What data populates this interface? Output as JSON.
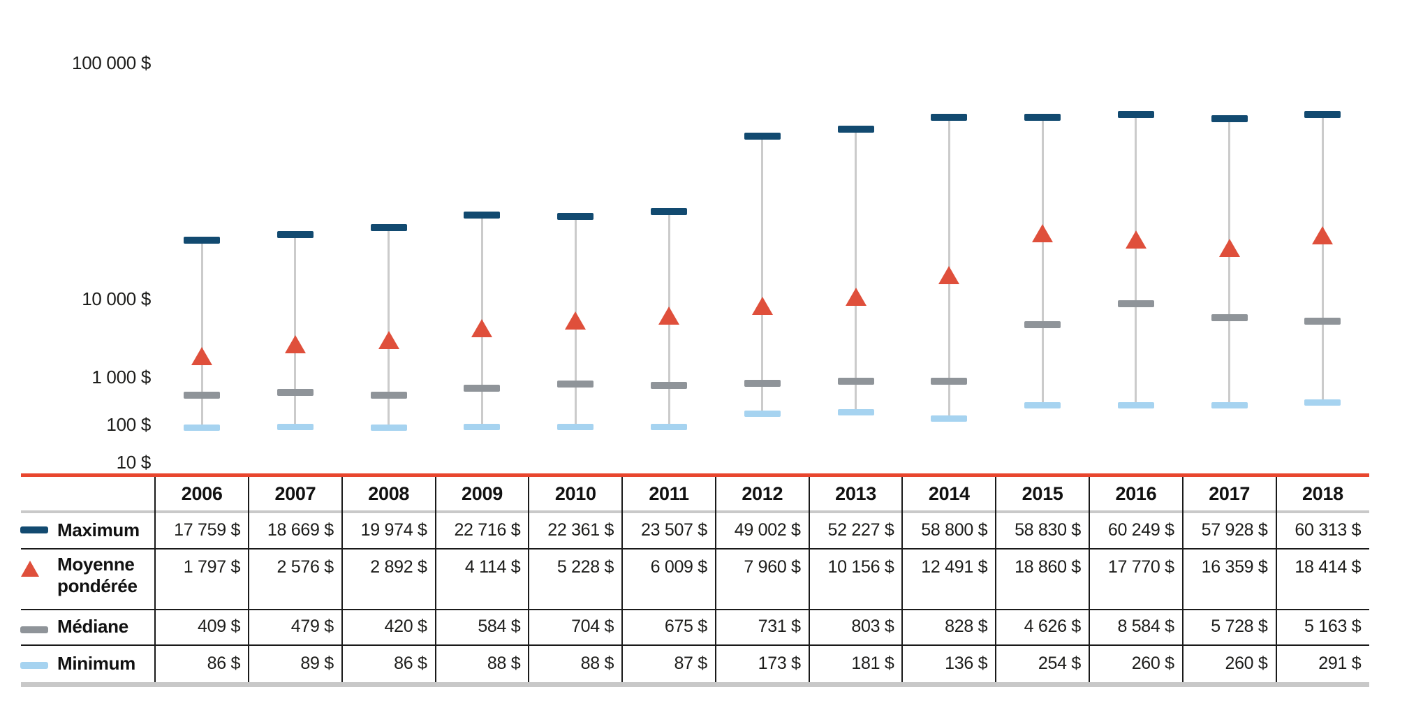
{
  "colors": {
    "maximum_navy": "#124a70",
    "moyenne_red": "#df4f3b",
    "mediane_gray": "#8f9499",
    "minimum_blue": "#a6d3f0",
    "range_line_gray": "#cbcbcb",
    "baseline_red": "#e8462e",
    "table_line_black": "#1a1a1a",
    "header_sep_gray": "#c9c9c9",
    "bottom_bar_gray": "#c8c8c8",
    "text": "#1d1d1b"
  },
  "chart": {
    "y_axis": {
      "ticks": [
        {
          "value": 100000,
          "label": "100 000 $"
        },
        {
          "value": 10000,
          "label": "10 000 $"
        },
        {
          "value": 1000,
          "label": "1 000 $"
        },
        {
          "value": 100,
          "label": "100 $"
        },
        {
          "value": 10,
          "label": "10 $"
        }
      ]
    }
  },
  "chart_data": {
    "type": "scatter",
    "subtype": "min-median-mean-max range plot",
    "scale": "log",
    "ylim": [
      10,
      100000
    ],
    "grid": false,
    "legend_position": "table-left",
    "categories": [
      "2006",
      "2007",
      "2008",
      "2009",
      "2010",
      "2011",
      "2012",
      "2013",
      "2014",
      "2015",
      "2016",
      "2017",
      "2018"
    ],
    "series": [
      {
        "key": "maximum",
        "name": "Maximum",
        "marker": "navy-bar",
        "values": [
          17759,
          18669,
          19974,
          22716,
          22361,
          23507,
          49002,
          52227,
          58800,
          58830,
          60249,
          57928,
          60313
        ]
      },
      {
        "key": "moyenne",
        "name": "Moyenne pondérée",
        "marker": "red-triangle",
        "values": [
          1797,
          2576,
          2892,
          4114,
          5228,
          6009,
          7960,
          10156,
          12491,
          18860,
          17770,
          16359,
          18414
        ]
      },
      {
        "key": "mediane",
        "name": "Médiane",
        "marker": "gray-bar",
        "values": [
          409,
          479,
          420,
          584,
          704,
          675,
          731,
          803,
          828,
          4626,
          8584,
          5728,
          5163
        ]
      },
      {
        "key": "minimum",
        "name": "Minimum",
        "marker": "lightblue-bar",
        "values": [
          86,
          89,
          86,
          88,
          88,
          87,
          173,
          181,
          136,
          254,
          260,
          260,
          291
        ]
      }
    ]
  },
  "table": {
    "columns": [
      "2006",
      "2007",
      "2008",
      "2009",
      "2010",
      "2011",
      "2012",
      "2013",
      "2014",
      "2015",
      "2016",
      "2017",
      "2018"
    ],
    "rows": [
      {
        "key": "maximum",
        "label": "Maximum",
        "label_lines": [
          "Maximum"
        ],
        "cells": [
          "17 759 $",
          "18 669 $",
          "19 974 $",
          "22 716 $",
          "22 361 $",
          "23 507 $",
          "49 002 $",
          "52 227 $",
          "58 800 $",
          "58 830 $",
          "60 249 $",
          "57 928 $",
          "60 313 $"
        ]
      },
      {
        "key": "moyenne",
        "label": "Moyenne pondérée",
        "label_lines": [
          "Moyenne",
          "pondérée"
        ],
        "cells": [
          "1 797 $",
          "2 576 $",
          "2 892 $",
          "4 114 $",
          "5 228 $",
          "6 009 $",
          "7 960 $",
          "10 156 $",
          "12 491 $",
          "18 860 $",
          "17 770 $",
          "16 359 $",
          "18 414 $"
        ]
      },
      {
        "key": "mediane",
        "label": "Médiane",
        "label_lines": [
          "Médiane"
        ],
        "cells": [
          "409 $",
          "479 $",
          "420 $",
          "584 $",
          "704 $",
          "675 $",
          "731 $",
          "803 $",
          "828 $",
          "4 626 $",
          "8 584 $",
          "5 728 $",
          "5 163 $"
        ]
      },
      {
        "key": "minimum",
        "label": "Minimum",
        "label_lines": [
          "Minimum"
        ],
        "cells": [
          "86 $",
          "89 $",
          "86 $",
          "88 $",
          "88 $",
          "87 $",
          "173 $",
          "181 $",
          "136 $",
          "254 $",
          "260 $",
          "260 $",
          "291 $"
        ]
      }
    ]
  }
}
